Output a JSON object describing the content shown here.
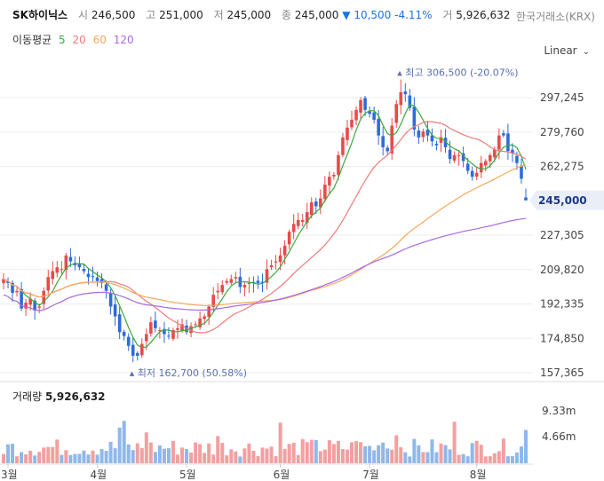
{
  "header": {
    "name": "SK하이닉스",
    "open_label": "시",
    "open": "246,500",
    "high_label": "고",
    "high": "251,000",
    "low_label": "저",
    "low": "245,000",
    "close_label": "종",
    "close": "245,000",
    "change_arrow": "▼",
    "change": "10,500 -4.11%",
    "volume_label": "거",
    "volume": "5,926,632",
    "exchange": "한국거래소(KRX)"
  },
  "ma_legend": {
    "title": "이동평균",
    "p5": "5",
    "p20": "20",
    "p60": "60",
    "p120": "120"
  },
  "scale_mode": "Linear",
  "volume_panel": {
    "label": "거래량",
    "value": "5,926,632"
  },
  "colors": {
    "up": "#e84a4a",
    "down": "#2f6bd9",
    "ma5": "#3aaa3a",
    "ma20": "#f07a7a",
    "ma60": "#f5a85a",
    "ma120": "#a86ae0",
    "vol_up": "#f2a0a0",
    "vol_down": "#8fb8ea"
  },
  "chart_data": {
    "type": "candlestick",
    "y_ticks": [
      "297,245",
      "279,760",
      "262,275",
      "227,305",
      "209,820",
      "192,335",
      "174,850",
      "157,365"
    ],
    "y_tick_values": [
      297245,
      279760,
      262275,
      227305,
      209820,
      192335,
      174850,
      157365
    ],
    "x_ticks": [
      "3월",
      "4월",
      "5월",
      "6월",
      "7월",
      "8월"
    ],
    "x_tick_index": [
      1,
      21,
      41,
      62,
      82,
      106
    ],
    "last_price_label": "245,000",
    "last_price": 245000,
    "high_annotation": "최고 306,500 (-20.07%)",
    "high_value": 306500,
    "high_index": 89,
    "low_annotation": "최저 162,700 (50.58%)",
    "low_value": 162700,
    "low_index": 29,
    "volume_ticks": [
      "9.33m",
      "4.66m"
    ],
    "volume_tick_values": [
      9.33,
      4.66
    ],
    "closes": [
      205000,
      203000,
      198000,
      199000,
      190000,
      193000,
      195000,
      189000,
      191000,
      199000,
      206000,
      209000,
      211000,
      210000,
      217000,
      214000,
      212000,
      211000,
      209000,
      206000,
      206000,
      204000,
      203000,
      199000,
      191000,
      186000,
      178000,
      176000,
      171000,
      166000,
      166000,
      172000,
      177000,
      183000,
      180000,
      179000,
      177000,
      176000,
      179000,
      180000,
      182000,
      178000,
      181000,
      182000,
      185000,
      186000,
      191000,
      197000,
      199000,
      202000,
      204000,
      205000,
      206000,
      201000,
      202000,
      203000,
      203000,
      203000,
      203000,
      210000,
      212000,
      214000,
      217000,
      222000,
      229000,
      233000,
      235000,
      235000,
      239000,
      244000,
      242000,
      246000,
      253000,
      257000,
      258000,
      268000,
      277000,
      282000,
      286000,
      291000,
      296000,
      291000,
      289000,
      286000,
      278000,
      272000,
      270000,
      283000,
      294000,
      300000,
      299000,
      292000,
      281000,
      277000,
      280000,
      278000,
      275000,
      273000,
      277000,
      272000,
      266000,
      268000,
      268000,
      265000,
      260000,
      257000,
      259000,
      264000,
      265000,
      268000,
      271000,
      278000,
      278000,
      270000,
      269000,
      264000,
      256000,
      245000
    ]
  }
}
